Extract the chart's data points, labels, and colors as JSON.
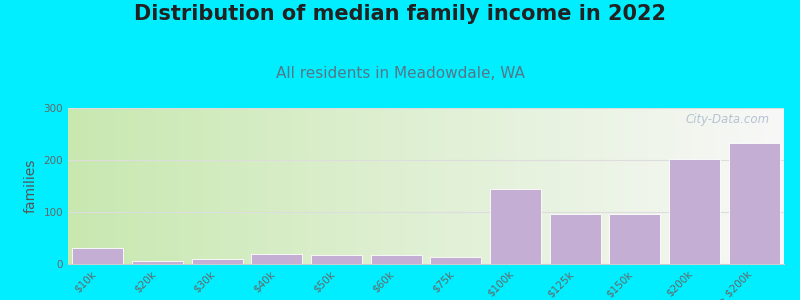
{
  "title": "Distribution of median family income in 2022",
  "subtitle": "All residents in Meadowdale, WA",
  "ylabel": "families",
  "categories": [
    "$10k",
    "$20k",
    "$30k",
    "$40k",
    "$50k",
    "$60k",
    "$75k",
    "$100k",
    "$125k",
    "$150k",
    "$200k",
    "> $200k"
  ],
  "values": [
    30,
    5,
    10,
    20,
    18,
    18,
    13,
    145,
    97,
    97,
    202,
    232
  ],
  "bar_color": "#c4aed4",
  "ylim": [
    0,
    300
  ],
  "yticks": [
    0,
    100,
    200,
    300
  ],
  "background_color": "#00eeff",
  "plot_bg_left_color": "#c8e8b0",
  "plot_bg_right_color": "#f8f8f8",
  "watermark": "City-Data.com",
  "title_fontsize": 15,
  "subtitle_fontsize": 11,
  "ylabel_fontsize": 10,
  "tick_fontsize": 7.5,
  "title_color": "#222222",
  "subtitle_color": "#557788",
  "ylabel_color": "#555555",
  "tick_color": "#666666",
  "watermark_color": "#aabbcc",
  "grid_color": "#dddddd"
}
